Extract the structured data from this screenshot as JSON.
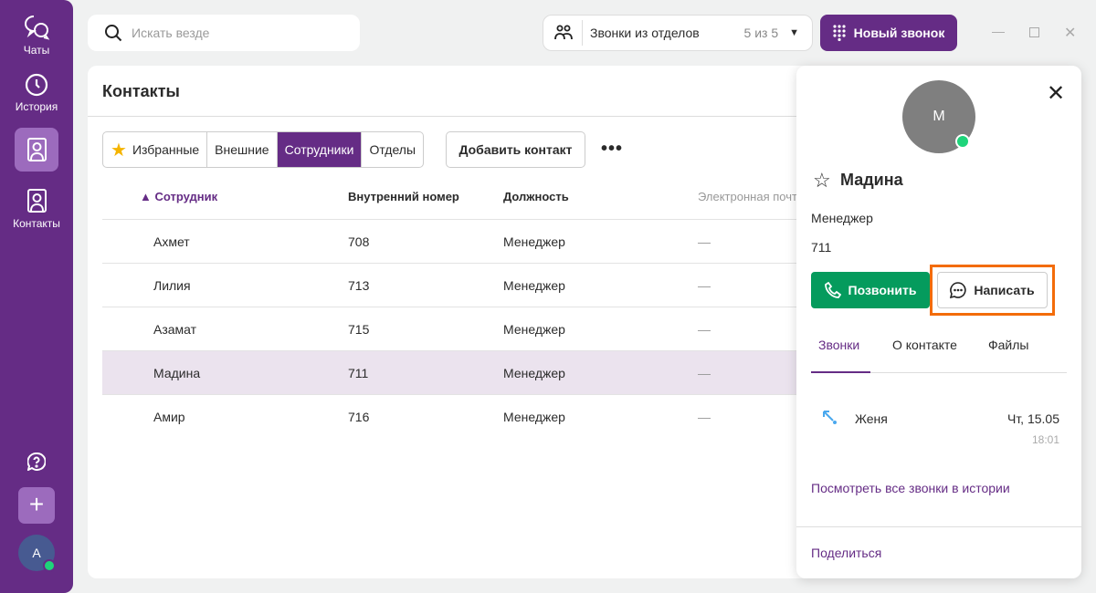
{
  "sidebar": {
    "items": [
      {
        "label": "Чаты",
        "icon": "chat-icon"
      },
      {
        "label": "История",
        "icon": "clock-icon"
      },
      {
        "label": "Контакты",
        "icon": "contacts-icon"
      }
    ],
    "avatar": "А",
    "colors": {
      "bg": "#652c85",
      "active": "#9c6bbd",
      "online": "#1ed47a"
    }
  },
  "search": {
    "placeholder": "Искать везде"
  },
  "dept": {
    "label": "Звонки из отделов",
    "count": "5 из 5"
  },
  "new_call": "Новый звонок",
  "contacts": {
    "title": "Контакты",
    "filters": [
      "Избранные",
      "Внешние",
      "Сотрудники",
      "Отделы"
    ],
    "active_filter": "Сотрудники",
    "add": "Добавить контакт",
    "columns": [
      "▲ Сотрудник",
      "Внутренний номер",
      "Должность",
      "Электронная почта"
    ],
    "rows": [
      [
        "Ахмет",
        "708",
        "Менеджер",
        "—"
      ],
      [
        "Лилия",
        "713",
        "Менеджер",
        "—"
      ],
      [
        "Азамат",
        "715",
        "Менеджер",
        "—"
      ],
      [
        "Мадина",
        "711",
        "Менеджер",
        "—"
      ],
      [
        "Амир",
        "716",
        "Менеджер",
        "—"
      ]
    ]
  },
  "panel": {
    "initial": "М",
    "name": "Мадина",
    "role": "Менеджер",
    "number": "711",
    "call": "Позвонить",
    "write": "Написать",
    "tabs": [
      "Звонки",
      "О контакте",
      "Файлы"
    ],
    "history": {
      "name": "Женя",
      "date": "Чт, 15.05",
      "time": "18:01"
    },
    "all_calls": "Посмотреть все звонки в истории",
    "share": "Поделиться"
  }
}
